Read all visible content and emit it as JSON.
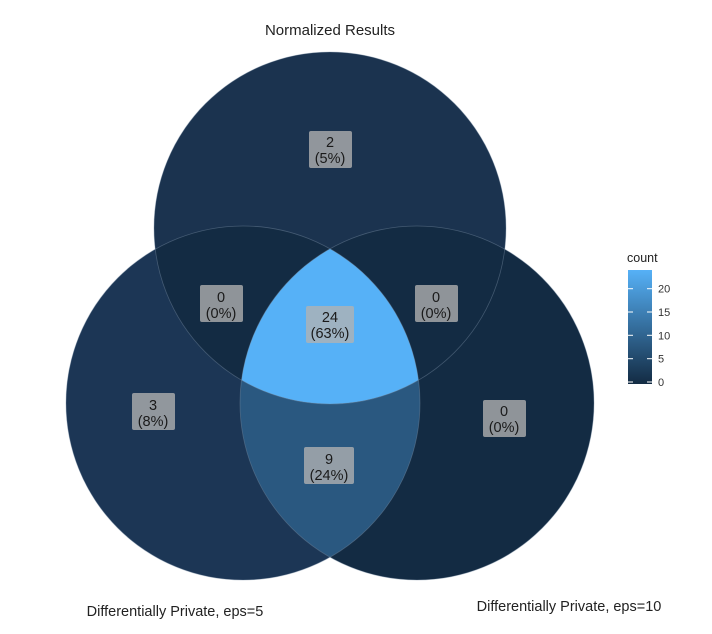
{
  "title": "Normalized Results",
  "set_labels": {
    "top": "",
    "left": "Differentially Private, eps=5",
    "right": "Differentially Private, eps=10"
  },
  "regions": [
    {
      "id": "top_only",
      "count": "2",
      "percent": "(5%)",
      "fill": "#1b334f"
    },
    {
      "id": "left_only",
      "count": "3",
      "percent": "(8%)",
      "fill": "#1c3655"
    },
    {
      "id": "right_only",
      "count": "0",
      "percent": "(0%)",
      "fill": "#132b43"
    },
    {
      "id": "top_left",
      "count": "0",
      "percent": "(0%)",
      "fill": "#132b43"
    },
    {
      "id": "top_right",
      "count": "0",
      "percent": "(0%)",
      "fill": "#132b43"
    },
    {
      "id": "left_right",
      "count": "9",
      "percent": "(24%)",
      "fill": "#2a5880"
    },
    {
      "id": "all_three",
      "count": "24",
      "percent": "(63%)",
      "fill": "#56b1f7"
    }
  ],
  "legend": {
    "title": "count",
    "ticks": [
      "20",
      "15",
      "10",
      "5",
      "0"
    ],
    "color_low": "#132b43",
    "color_high": "#56b1f7"
  }
}
